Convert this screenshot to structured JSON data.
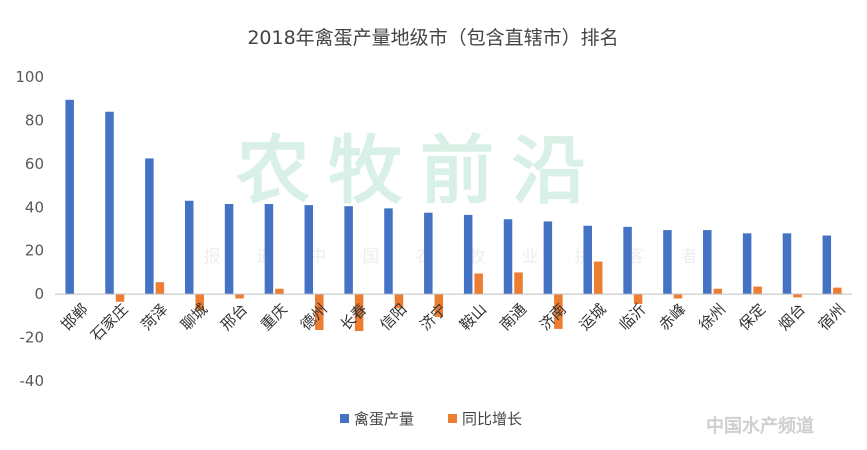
{
  "chart_data": {
    "type": "bar",
    "title": "2018年禽蛋产量地级市（包含直辖市）排名",
    "categories": [
      "邯郸",
      "石家庄",
      "菏泽",
      "聊城",
      "邢台",
      "重庆",
      "德州",
      "长春",
      "信阳",
      "济宁",
      "鞍山",
      "南通",
      "济南",
      "运城",
      "临沂",
      "赤峰",
      "徐州",
      "保定",
      "烟台",
      "宿州"
    ],
    "series": [
      {
        "name": "禽蛋产量",
        "color": "#4472C4",
        "values": [
          89.5,
          84,
          62.5,
          43,
          41.5,
          41.5,
          41,
          40.5,
          39.5,
          37.5,
          36.5,
          34.5,
          33.5,
          31.5,
          31,
          29.5,
          29.5,
          28,
          28,
          27
        ]
      },
      {
        "name": "同比增长",
        "color": "#ED7D31",
        "values": [
          0,
          -3.5,
          5.5,
          -7.5,
          -2,
          2.5,
          -16.5,
          -17,
          -6.5,
          -10.5,
          9.5,
          10,
          -16,
          15,
          -4.5,
          -2,
          2.5,
          3.5,
          -1.5,
          3
        ]
      }
    ],
    "ylim": [
      -40,
      100
    ],
    "yticks": [
      "-40",
      "-20",
      "0",
      "20",
      "40",
      "60",
      "80",
      "100"
    ],
    "grid": false,
    "legend_position": "bottom"
  },
  "watermark": {
    "main": "农牧前沿",
    "sub": [
      "报",
      "道",
      "中",
      "国",
      "农",
      "牧",
      "业",
      "拼",
      "客",
      "者"
    ],
    "site": "中国水产频道"
  }
}
